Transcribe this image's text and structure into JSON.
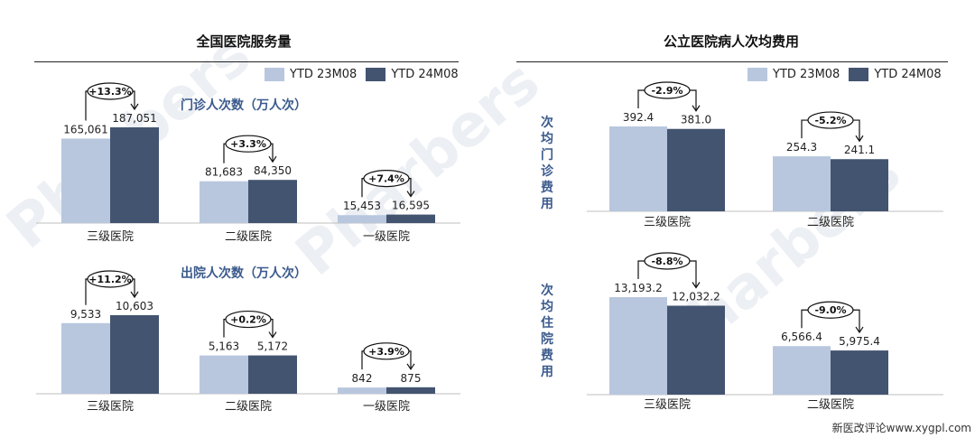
{
  "colors": {
    "ytd23": "#b8c7de",
    "ytd24": "#435470",
    "subtitle": "#3b5a8c"
  },
  "legend": {
    "ytd23": "YTD 23M08",
    "ytd24": "YTD 24M08"
  },
  "left": {
    "title": "全国医院服务量",
    "outpatient_title": "门诊人次数（万人次）",
    "inpatient_title": "出院人次数（万人次）"
  },
  "right": {
    "title": "公立医院病人次均费用",
    "outpatient_title": "次均门诊费用",
    "inpatient_title": "次均住院费用"
  },
  "watermark": "Pharbers",
  "footer": "新医改评论www.xygpl.com",
  "chart_data": [
    {
      "type": "bar",
      "title": "门诊人次数（万人次）",
      "categories": [
        "三级医院",
        "二级医院",
        "一级医院"
      ],
      "series": [
        {
          "name": "YTD 23M08",
          "values": [
            165061,
            81683,
            15453
          ],
          "labels": [
            "165,061",
            "81,683",
            "15,453"
          ]
        },
        {
          "name": "YTD 24M08",
          "values": [
            187051,
            84350,
            16595
          ],
          "labels": [
            "187,051",
            "84,350",
            "16,595"
          ]
        }
      ],
      "changes": [
        "+13.3%",
        "+3.3%",
        "+7.4%"
      ]
    },
    {
      "type": "bar",
      "title": "出院人次数（万人次）",
      "categories": [
        "三级医院",
        "二级医院",
        "一级医院"
      ],
      "series": [
        {
          "name": "YTD 23M08",
          "values": [
            9533,
            5163,
            842
          ],
          "labels": [
            "9,533",
            "5,163",
            "842"
          ]
        },
        {
          "name": "YTD 24M08",
          "values": [
            10603,
            5172,
            875
          ],
          "labels": [
            "10,603",
            "5,172",
            "875"
          ]
        }
      ],
      "changes": [
        "+11.2%",
        "+0.2%",
        "+3.9%"
      ]
    },
    {
      "type": "bar",
      "title": "次均门诊费用",
      "categories": [
        "三级医院",
        "二级医院"
      ],
      "series": [
        {
          "name": "YTD 23M08",
          "values": [
            392.4,
            254.3
          ],
          "labels": [
            "392.4",
            "254.3"
          ]
        },
        {
          "name": "YTD 24M08",
          "values": [
            381.0,
            241.1
          ],
          "labels": [
            "381.0",
            "241.1"
          ]
        }
      ],
      "changes": [
        "-2.9%",
        "-5.2%"
      ]
    },
    {
      "type": "bar",
      "title": "次均住院费用",
      "categories": [
        "三级医院",
        "二级医院"
      ],
      "series": [
        {
          "name": "YTD 23M08",
          "values": [
            13193.2,
            6566.4
          ],
          "labels": [
            "13,193.2",
            "6,566.4"
          ]
        },
        {
          "name": "YTD 24M08",
          "values": [
            12032.2,
            5975.4
          ],
          "labels": [
            "12,032.2",
            "5,975.4"
          ]
        }
      ],
      "changes": [
        "-8.8%",
        "-9.0%"
      ]
    }
  ]
}
